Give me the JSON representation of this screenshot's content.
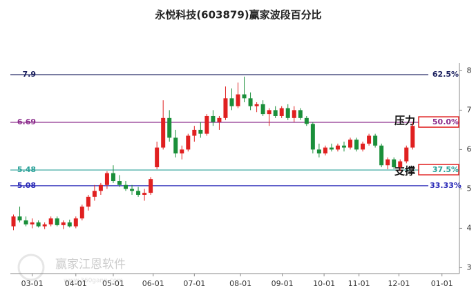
{
  "chart_data": {
    "type": "candlestick",
    "title": "永悦科技(603879)赢家波段百分比",
    "open": [
      4.05,
      4.3,
      4.2,
      4.1,
      4.15,
      4.05,
      4.1,
      4.25,
      4.08,
      4.15,
      4.05,
      4.25,
      4.55,
      4.8,
      4.95,
      5.1,
      5.4,
      5.2,
      5.1,
      5.0,
      4.95,
      4.85,
      4.9,
      5.55,
      6.05,
      6.8,
      6.3,
      5.9,
      6.0,
      6.35,
      6.5,
      6.4,
      6.85,
      6.7,
      6.8,
      7.3,
      7.1,
      7.4,
      7.3,
      7.1,
      7.15,
      6.9,
      7.0,
      6.85,
      7.05,
      6.8,
      7.0,
      6.8,
      6.65,
      6.0,
      5.9,
      6.05,
      6.0,
      6.1,
      6.05,
      6.25,
      6.0,
      6.15,
      6.35,
      6.1,
      5.6,
      5.75,
      5.55,
      5.7,
      6.05
    ],
    "high": [
      4.35,
      4.55,
      4.3,
      4.25,
      4.2,
      4.15,
      4.3,
      4.3,
      4.2,
      4.22,
      4.3,
      4.6,
      4.85,
      5.1,
      5.15,
      5.45,
      5.6,
      5.35,
      5.2,
      5.1,
      5.05,
      5.0,
      5.3,
      6.2,
      7.25,
      7.0,
      6.5,
      6.1,
      6.4,
      6.6,
      6.7,
      6.9,
      7.0,
      6.85,
      7.6,
      7.55,
      7.7,
      7.85,
      7.45,
      7.2,
      7.25,
      7.05,
      7.1,
      7.1,
      7.15,
      7.1,
      7.05,
      6.85,
      6.7,
      6.15,
      6.1,
      6.15,
      6.15,
      6.2,
      6.3,
      6.3,
      6.2,
      6.4,
      6.4,
      6.15,
      5.8,
      5.8,
      5.75,
      6.1,
      6.7
    ],
    "low": [
      3.95,
      4.15,
      4.05,
      4.0,
      4.02,
      3.98,
      4.05,
      4.05,
      3.98,
      4.02,
      4.0,
      4.2,
      4.45,
      4.7,
      4.85,
      5.0,
      5.15,
      5.05,
      4.95,
      4.85,
      4.8,
      4.7,
      4.85,
      5.5,
      6.0,
      6.2,
      5.8,
      5.75,
      5.95,
      6.2,
      6.3,
      6.35,
      6.6,
      6.5,
      6.75,
      7.0,
      7.05,
      7.2,
      7.0,
      6.95,
      6.85,
      6.6,
      6.8,
      6.8,
      6.75,
      6.7,
      6.75,
      6.6,
      5.9,
      5.8,
      5.85,
      5.95,
      5.95,
      5.95,
      6.0,
      5.95,
      5.95,
      6.1,
      6.05,
      5.55,
      5.5,
      5.5,
      5.45,
      5.65,
      6.0
    ],
    "close": [
      4.3,
      4.2,
      4.1,
      4.15,
      4.05,
      4.1,
      4.25,
      4.08,
      4.15,
      4.05,
      4.25,
      4.55,
      4.8,
      4.95,
      5.1,
      5.4,
      5.2,
      5.1,
      5.0,
      4.95,
      4.85,
      4.9,
      5.25,
      6.05,
      6.8,
      6.3,
      5.9,
      6.0,
      6.35,
      6.5,
      6.4,
      6.85,
      6.7,
      6.8,
      7.3,
      7.1,
      7.4,
      7.3,
      7.1,
      7.15,
      6.9,
      7.0,
      6.85,
      7.05,
      6.8,
      7.0,
      6.8,
      6.65,
      6.0,
      5.9,
      6.05,
      6.0,
      6.1,
      6.05,
      6.25,
      6.0,
      6.15,
      6.35,
      6.1,
      5.6,
      5.75,
      5.55,
      5.7,
      6.05,
      6.6
    ],
    "up_color": "#e02020",
    "down_color": "#1a8f3a",
    "xlim": [
      -0.5,
      71.5
    ],
    "xticks": [
      {
        "value": 3,
        "label": "03-01"
      },
      {
        "value": 10,
        "label": "04-01"
      },
      {
        "value": 16,
        "label": "05-01"
      },
      {
        "value": 22.4,
        "label": "06-01"
      },
      {
        "value": 29,
        "label": "07-01"
      },
      {
        "value": 36.4,
        "label": "08-01"
      },
      {
        "value": 43.1,
        "label": "09-01"
      },
      {
        "value": 49.8,
        "label": "10-01"
      },
      {
        "value": 55.4,
        "label": "11-01"
      },
      {
        "value": 61.8,
        "label": "12-01"
      },
      {
        "value": 68.7,
        "label": "01-01"
      }
    ],
    "ylim": [
      2.85,
      8.2
    ],
    "yticks": [
      3,
      4,
      5,
      6,
      7,
      8
    ],
    "levels": [
      {
        "value": 7.9,
        "label": "62.5%",
        "color": "#1a1f5e"
      },
      {
        "value": 6.69,
        "label": "50.0%",
        "color": "#8b2a8b",
        "annotation": "压力"
      },
      {
        "value": 5.48,
        "label": "37.5%",
        "color": "#2aa198",
        "annotation": "支撑"
      },
      {
        "value": 5.08,
        "label": "33.33%",
        "color": "#2b2bb8"
      }
    ],
    "watermark": "赢家江恩软件",
    "watermark_url": "www.360gann.com"
  }
}
